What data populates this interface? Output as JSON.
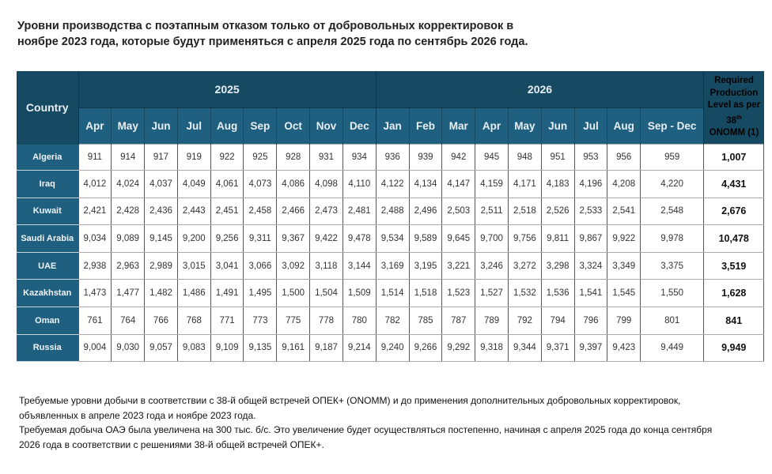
{
  "title": "Уровни производства с поэтапным отказом только от добровольных корректировок в ноябре 2023 года, которые будут применяться с апреля 2025 года по сентябрь 2026 года.",
  "table": {
    "country_header": "Country",
    "years": [
      {
        "label": "2025",
        "months": [
          "Apr",
          "May",
          "Jun",
          "Jul",
          "Aug",
          "Sep",
          "Oct",
          "Nov",
          "Dec"
        ]
      },
      {
        "label": "2026",
        "months": [
          "Jan",
          "Feb",
          "Mar",
          "Apr",
          "May",
          "Jun",
          "Jul",
          "Aug",
          "Sep - Dec"
        ]
      }
    ],
    "required_header": {
      "line1": "Required",
      "line2": "Production",
      "line3": "Level as per",
      "line4_num": "38",
      "line4_sup": "th",
      "line5": "ONOMM (1)"
    },
    "rows": [
      {
        "country": "Algeria",
        "values": [
          "911",
          "914",
          "917",
          "919",
          "922",
          "925",
          "928",
          "931",
          "934",
          "936",
          "939",
          "942",
          "945",
          "948",
          "951",
          "953",
          "956",
          "959"
        ],
        "required": "1,007"
      },
      {
        "country": "Iraq",
        "values": [
          "4,012",
          "4,024",
          "4,037",
          "4,049",
          "4,061",
          "4,073",
          "4,086",
          "4,098",
          "4,110",
          "4,122",
          "4,134",
          "4,147",
          "4,159",
          "4,171",
          "4,183",
          "4,196",
          "4,208",
          "4,220"
        ],
        "required": "4,431"
      },
      {
        "country": "Kuwait",
        "values": [
          "2,421",
          "2,428",
          "2,436",
          "2,443",
          "2,451",
          "2,458",
          "2,466",
          "2,473",
          "2,481",
          "2,488",
          "2,496",
          "2,503",
          "2,511",
          "2,518",
          "2,526",
          "2,533",
          "2,541",
          "2,548"
        ],
        "required": "2,676"
      },
      {
        "country": "Saudi Arabia",
        "values": [
          "9,034",
          "9,089",
          "9,145",
          "9,200",
          "9,256",
          "9,311",
          "9,367",
          "9,422",
          "9,478",
          "9,534",
          "9,589",
          "9,645",
          "9,700",
          "9,756",
          "9,811",
          "9,867",
          "9,922",
          "9,978"
        ],
        "required": "10,478"
      },
      {
        "country": "UAE",
        "values": [
          "2,938",
          "2,963",
          "2,989",
          "3,015",
          "3,041",
          "3,066",
          "3,092",
          "3,118",
          "3,144",
          "3,169",
          "3,195",
          "3,221",
          "3,246",
          "3,272",
          "3,298",
          "3,324",
          "3,349",
          "3,375"
        ],
        "required": "3,519"
      },
      {
        "country": "Kazakhstan",
        "values": [
          "1,473",
          "1,477",
          "1,482",
          "1,486",
          "1,491",
          "1,495",
          "1,500",
          "1,504",
          "1,509",
          "1,514",
          "1,518",
          "1,523",
          "1,527",
          "1,532",
          "1,536",
          "1,541",
          "1,545",
          "1,550"
        ],
        "required": "1,628"
      },
      {
        "country": "Oman",
        "values": [
          "761",
          "764",
          "766",
          "768",
          "771",
          "773",
          "775",
          "778",
          "780",
          "782",
          "785",
          "787",
          "789",
          "792",
          "794",
          "796",
          "799",
          "801"
        ],
        "required": "841"
      },
      {
        "country": "Russia",
        "values": [
          "9,004",
          "9,030",
          "9,057",
          "9,083",
          "9,109",
          "9,135",
          "9,161",
          "9,187",
          "9,214",
          "9,240",
          "9,266",
          "9,292",
          "9,318",
          "9,344",
          "9,371",
          "9,397",
          "9,423",
          "9,449"
        ],
        "required": "9,949"
      }
    ]
  },
  "notes": [
    "Требуемые уровни добычи в соответствии с 38-й общей встречей ОПЕК+ (ONOMM) и до  применения дополнительных добровольных корректировок, объявленных в апреле 2023 года и ноябре 2023 года.",
    "Требуемая добыча ОАЭ была увеличена на 300 тыс. б/с. Это увеличение будет осуществляться постепенно, начиная с апреля 2025 года до конца сентября 2026 года в соответствии с решениями 38-й общей встречей ОПЕК+."
  ],
  "colors": {
    "header_dark": "#164a63",
    "header_mid": "#1f6080",
    "cell_bg": "#ffffff"
  }
}
